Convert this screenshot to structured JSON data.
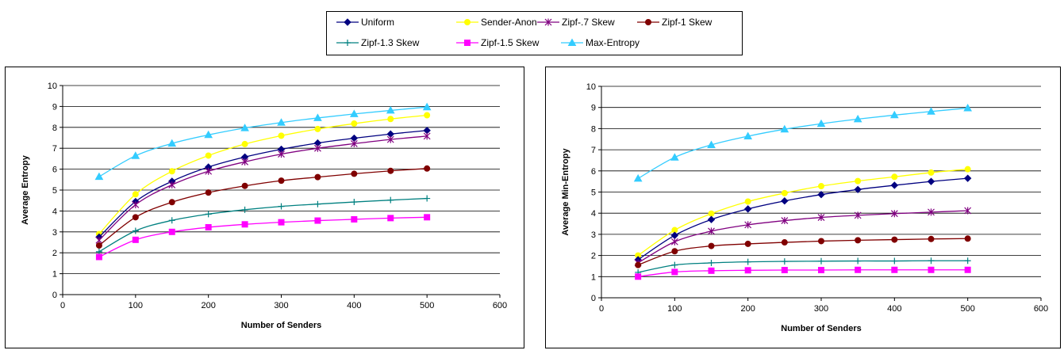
{
  "legend": {
    "items": [
      {
        "label": "Uniform",
        "color": "#000080",
        "marker": "diamond"
      },
      {
        "label": "Sender-Anon",
        "color": "#FFFF00",
        "marker": "circle"
      },
      {
        "label": "Zipf-.7 Skew",
        "color": "#800080",
        "marker": "asterisk"
      },
      {
        "label": "Zipf-1 Skew",
        "color": "#800000",
        "marker": "circle"
      },
      {
        "label": "Zipf-1.3 Skew",
        "color": "#008080",
        "marker": "plus"
      },
      {
        "label": "Zipf-1.5 Skew",
        "color": "#FF00FF",
        "marker": "square"
      },
      {
        "label": "Max-Entropy",
        "color": "#33CCFF",
        "marker": "triangle"
      }
    ]
  },
  "chart_data": [
    {
      "type": "line",
      "title": "",
      "xlabel": "Number of Senders",
      "ylabel": "Average Entropy",
      "xlim": [
        0,
        600
      ],
      "ylim": [
        0,
        10
      ],
      "xticks": [
        0,
        100,
        200,
        300,
        400,
        500,
        600
      ],
      "yticks": [
        0,
        1,
        2,
        3,
        4,
        5,
        6,
        7,
        8,
        9,
        10
      ],
      "grid": "horizontal",
      "x": [
        50,
        100,
        150,
        200,
        250,
        300,
        350,
        400,
        450,
        500
      ],
      "series": [
        {
          "name": "Max-Entropy",
          "values": [
            5.64,
            6.64,
            7.23,
            7.64,
            7.97,
            8.23,
            8.45,
            8.64,
            8.81,
            8.97
          ]
        },
        {
          "name": "Sender-Anon",
          "values": [
            2.9,
            4.8,
            5.9,
            6.65,
            7.2,
            7.6,
            7.92,
            8.18,
            8.4,
            8.58
          ]
        },
        {
          "name": "Uniform",
          "values": [
            2.75,
            4.45,
            5.42,
            6.1,
            6.58,
            6.95,
            7.25,
            7.48,
            7.68,
            7.85
          ]
        },
        {
          "name": "Zipf-.7 Skew",
          "values": [
            2.6,
            4.3,
            5.25,
            5.9,
            6.35,
            6.72,
            7.0,
            7.22,
            7.42,
            7.58
          ]
        },
        {
          "name": "Zipf-1 Skew",
          "values": [
            2.35,
            3.7,
            4.42,
            4.88,
            5.2,
            5.45,
            5.62,
            5.78,
            5.92,
            6.03
          ]
        },
        {
          "name": "Zipf-1.3 Skew",
          "values": [
            2.05,
            3.05,
            3.55,
            3.85,
            4.06,
            4.22,
            4.33,
            4.43,
            4.52,
            4.6
          ]
        },
        {
          "name": "Zipf-1.5 Skew",
          "values": [
            1.8,
            2.62,
            3.0,
            3.22,
            3.36,
            3.46,
            3.54,
            3.6,
            3.66,
            3.7
          ]
        }
      ]
    },
    {
      "type": "line",
      "title": "",
      "xlabel": "Number of Senders",
      "ylabel": "Average Min-Entropy",
      "xlim": [
        0,
        600
      ],
      "ylim": [
        0,
        10
      ],
      "xticks": [
        0,
        100,
        200,
        300,
        400,
        500,
        600
      ],
      "yticks": [
        0,
        1,
        2,
        3,
        4,
        5,
        6,
        7,
        8,
        9,
        10
      ],
      "grid": "horizontal",
      "x": [
        50,
        100,
        150,
        200,
        250,
        300,
        350,
        400,
        450,
        500
      ],
      "series": [
        {
          "name": "Max-Entropy",
          "values": [
            5.64,
            6.64,
            7.23,
            7.64,
            7.97,
            8.23,
            8.45,
            8.64,
            8.81,
            8.97
          ]
        },
        {
          "name": "Sender-Anon",
          "values": [
            2.0,
            3.2,
            3.98,
            4.55,
            4.95,
            5.28,
            5.52,
            5.72,
            5.92,
            6.08
          ]
        },
        {
          "name": "Uniform",
          "values": [
            1.8,
            2.95,
            3.7,
            4.2,
            4.58,
            4.88,
            5.12,
            5.32,
            5.5,
            5.65
          ]
        },
        {
          "name": "Zipf-.7 Skew",
          "values": [
            1.65,
            2.65,
            3.15,
            3.45,
            3.65,
            3.8,
            3.9,
            3.98,
            4.05,
            4.12
          ]
        },
        {
          "name": "Zipf-1 Skew",
          "values": [
            1.55,
            2.2,
            2.45,
            2.55,
            2.62,
            2.68,
            2.72,
            2.75,
            2.78,
            2.8
          ]
        },
        {
          "name": "Zipf-1.3 Skew",
          "values": [
            1.2,
            1.55,
            1.65,
            1.7,
            1.72,
            1.73,
            1.74,
            1.74,
            1.75,
            1.75
          ]
        },
        {
          "name": "Zipf-1.5 Skew",
          "values": [
            1.0,
            1.22,
            1.28,
            1.3,
            1.31,
            1.31,
            1.32,
            1.32,
            1.32,
            1.32
          ]
        }
      ]
    }
  ]
}
